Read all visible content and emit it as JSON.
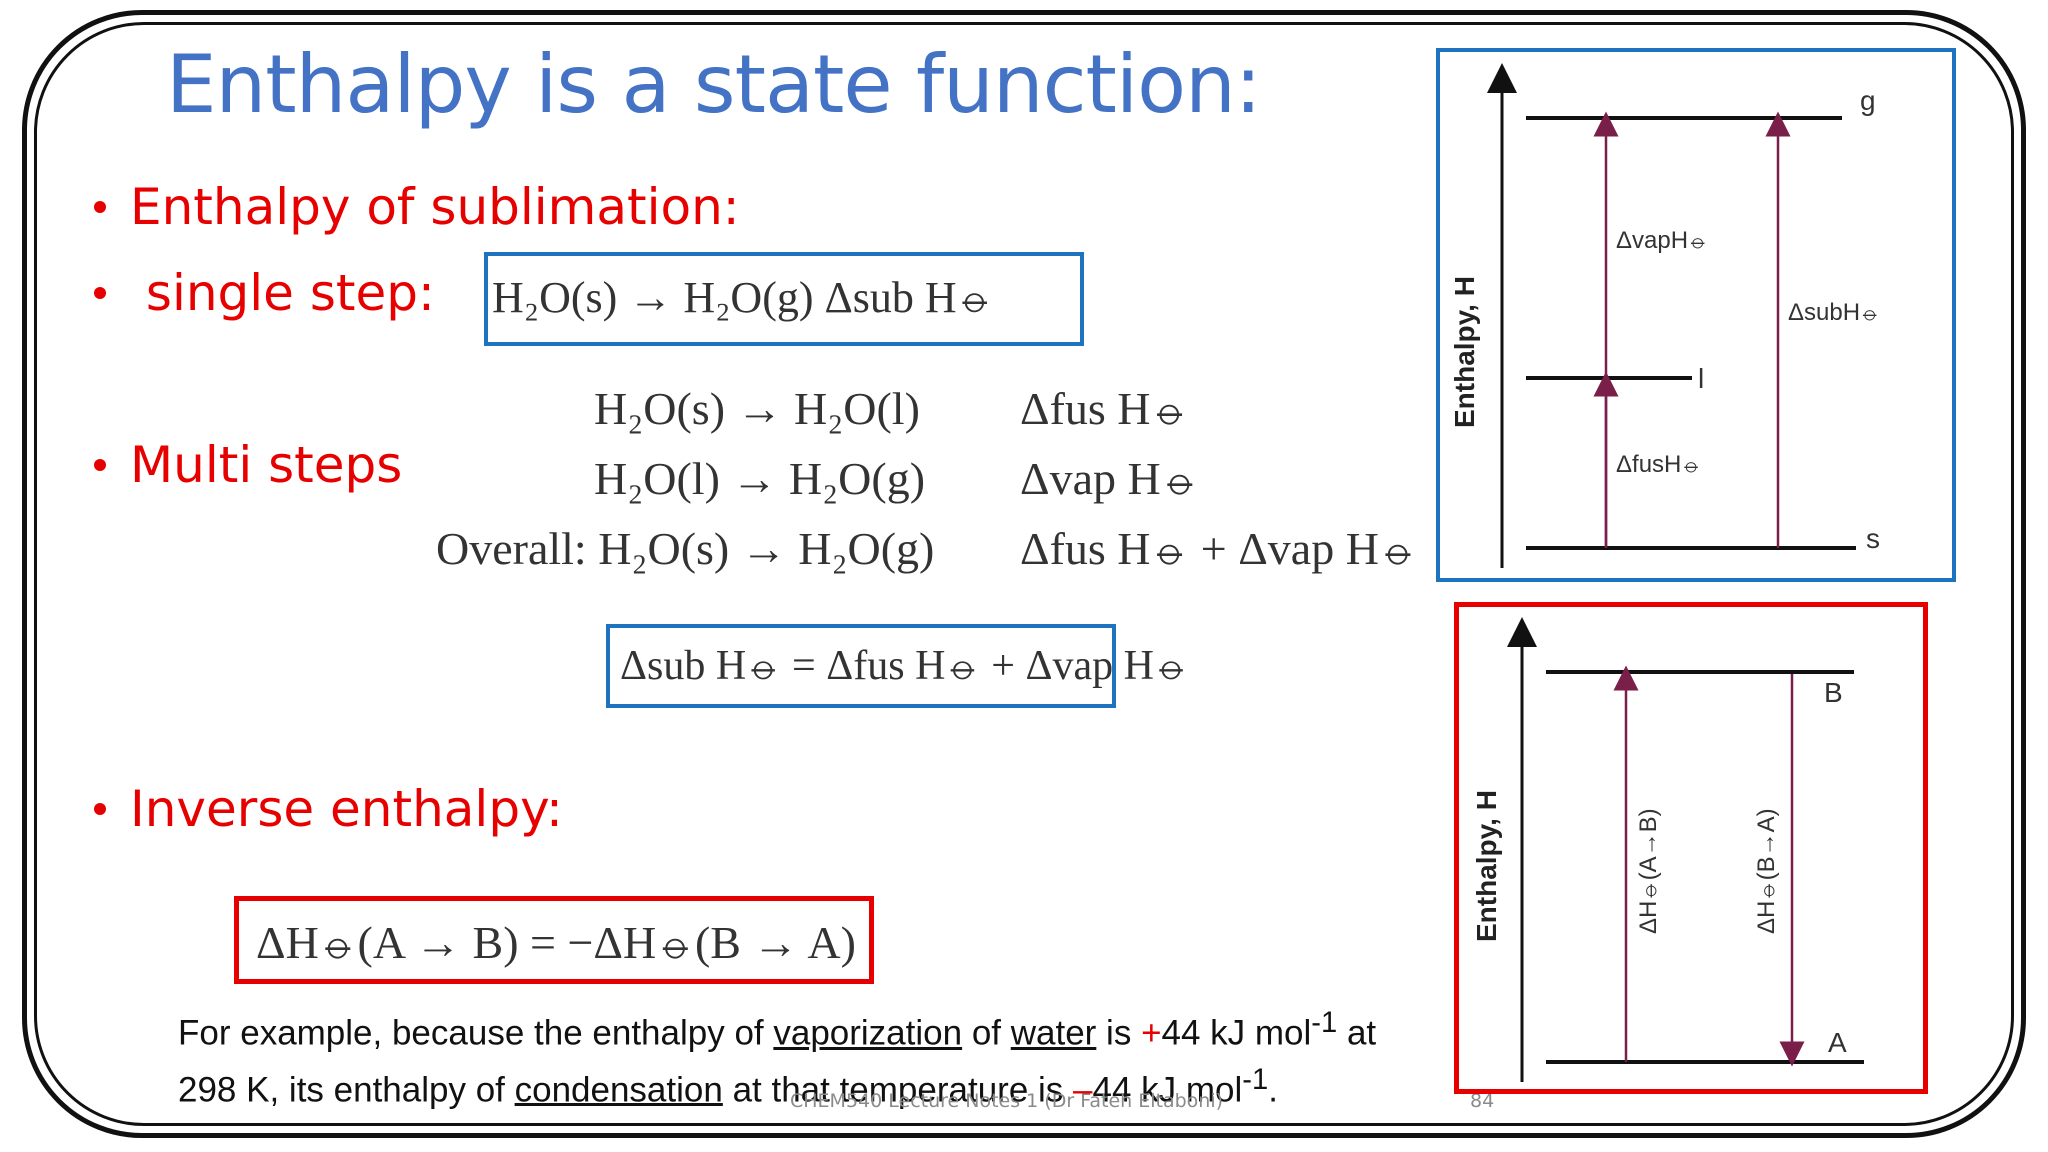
{
  "title": "Enthalpy is a state function:",
  "bullets": {
    "sublimation": "Enthalpy of sublimation:",
    "single_step": "single step:",
    "multi_steps": "Multi steps",
    "inverse": "Inverse enthalpy:"
  },
  "equations": {
    "single": "H₂O(s) → H₂O(g)      Δsub H⦵",
    "multi_1_reaction": "H₂O(s) → H₂O(l)",
    "multi_1_enthalpy": "Δfus H⦵",
    "multi_2_reaction": "H₂O(l) → H₂O(g)",
    "multi_2_enthalpy": "Δvap H⦵",
    "overall_reaction": "Overall: H₂O(s) → H₂O(g)",
    "overall_enthalpy": "Δfus H⦵ + Δvap H⦵",
    "hess": "Δsub H⦵ = Δfus H⦵ + Δvap H⦵",
    "inverse": "ΔH⦵(A → B) = −ΔH⦵(B → A)"
  },
  "note": {
    "t1": "For example, because the enthalpy of ",
    "u1": "vaporization",
    "t2": " of ",
    "u2": "water",
    "t3": " is ",
    "plus": "+",
    "t4": "44 kJ mol",
    "sup1": "-1",
    "t5": " at 298 K, its enthalpy of ",
    "u3": "condensation",
    "t6": " at that temperature is ",
    "minus": "–",
    "t7": "44 kJ mol",
    "sup2": "-1",
    "t8": "."
  },
  "diagram1": {
    "axis_label": "Enthalpy, H",
    "level_g": "g",
    "level_l": "l",
    "level_s": "s",
    "arrow_vap": "ΔvapH⦵",
    "arrow_sub": "ΔsubH⦵",
    "arrow_fus": "ΔfusH⦵"
  },
  "diagram2": {
    "axis_label": "Enthalpy, H",
    "level_b": "B",
    "level_a": "A",
    "arrow_ab": "ΔH⦵(A→B)",
    "arrow_ba": "ΔH⦵(B→A)"
  },
  "footer": {
    "text": "CHEM540 Lecture Notes 1 (Dr Fateh Eltaboni)",
    "page": "84"
  },
  "colors": {
    "title": "#4472c4",
    "bullet": "#e60000",
    "blue_box": "#1e73be",
    "red_box": "#e60000",
    "arrow": "#7a1e4a"
  }
}
